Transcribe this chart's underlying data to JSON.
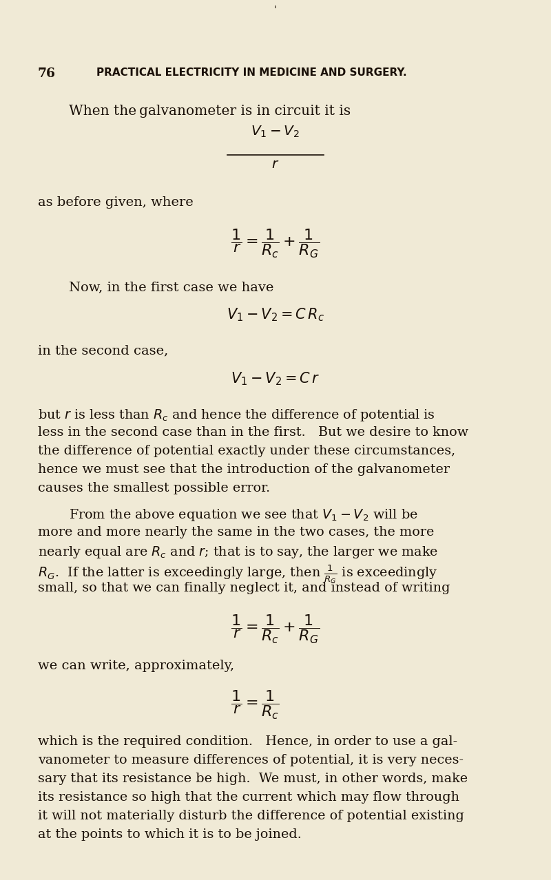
{
  "bg_color": "#f0ead6",
  "text_color": "#1a1008",
  "page_width": 8.0,
  "page_height": 12.78,
  "dpi": 100,
  "header_num": "76",
  "header_title": "PRACTICAL ELECTRICITY IN MEDICINE AND SURGERY.",
  "tick_mark": "‘",
  "intro_text": "When the galvanometer is in circuit it is",
  "frac1_num": "$V_1 - V_2$",
  "frac1_den": "$r$",
  "before_given": "as before given, where",
  "formula1": "$\\dfrac{1}{r} = \\dfrac{1}{R_c} + \\dfrac{1}{R_G}$",
  "first_case": "Now, in the first case we have",
  "eq1": "$V_1 - V_2 = C\\,R_c$",
  "second_case": "in the second case,",
  "eq2": "$V_1 - V_2 = C\\,r$",
  "body1": [
    "but $r$ is less than $R_c$ and hence the difference of potential is",
    "less in the second case than in the first.   But we desire to know",
    "the difference of potential exactly under these circumstances,",
    "hence we must see that the introduction of the galvanometer",
    "causes the smallest possible error."
  ],
  "body2_indent": "        From the above equation we see that $V_1 - V_2$ will be",
  "body2_rest": [
    "more and more nearly the same in the two cases, the more",
    "nearly equal are $R_c$ and $r$; that is to say, the larger we make",
    "$R_G$.  If the latter is exceedingly large, then $\\frac{1}{R_G}$ is exceedingly",
    "small, so that we can finally neglect it, and instead of writing"
  ],
  "formula2": "$\\dfrac{1}{r} = \\dfrac{1}{R_c} + \\dfrac{1}{R_G}$",
  "approx_text": "we can write, approximately,",
  "formula3": "$\\dfrac{1}{r} = \\dfrac{1}{R_c}$",
  "body3": [
    "which is the required condition.   Hence, in order to use a gal-",
    "vanometer to measure differences of potential, it is very neces-",
    "sary that its resistance be high.  We must, in other words, make",
    "its resistance so high that the current which may flow through",
    "it will not materially disturb the difference of potential existing",
    "at the points to which it is to be joined."
  ]
}
